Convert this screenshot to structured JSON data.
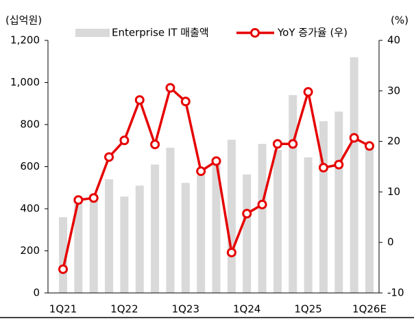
{
  "chart_data": {
    "type": "bar-line",
    "y_label": "(십억원)",
    "y2_label": "(%)",
    "categories": [
      "1Q21",
      null,
      null,
      null,
      "1Q22",
      null,
      null,
      null,
      "1Q23",
      null,
      null,
      null,
      "1Q24",
      null,
      null,
      null,
      "1Q25",
      null,
      null,
      null,
      "1Q26E"
    ],
    "series": [
      {
        "name": "Enterprise IT 매출액",
        "type": "bar",
        "color": "#d9d9d9",
        "values": [
          360,
          440,
          470,
          540,
          458,
          510,
          610,
          690,
          523,
          560,
          610,
          728,
          563,
          708,
          680,
          940,
          644,
          816,
          862,
          1120,
          700
        ]
      },
      {
        "name": "YoY 증가율 (우)",
        "type": "line",
        "color": "#e60000",
        "axis": "y2",
        "values": [
          -5.3,
          8.4,
          8.8,
          16.9,
          20.2,
          28.2,
          19.4,
          30.6,
          27.9,
          14.1,
          16.1,
          -2.0,
          5.7,
          7.5,
          19.5,
          19.5,
          29.8,
          14.8,
          15.4,
          20.7,
          19.1
        ]
      }
    ],
    "ylim": [
      0,
      1200
    ],
    "yticks": [
      0,
      200,
      400,
      600,
      800,
      {
        "value": 1000,
        "label": "1,000"
      },
      {
        "value": 1200,
        "label": "1,200"
      }
    ],
    "y2lim": [
      -10,
      40
    ],
    "y2ticks": [
      -10,
      0,
      10,
      20,
      30,
      40
    ]
  }
}
